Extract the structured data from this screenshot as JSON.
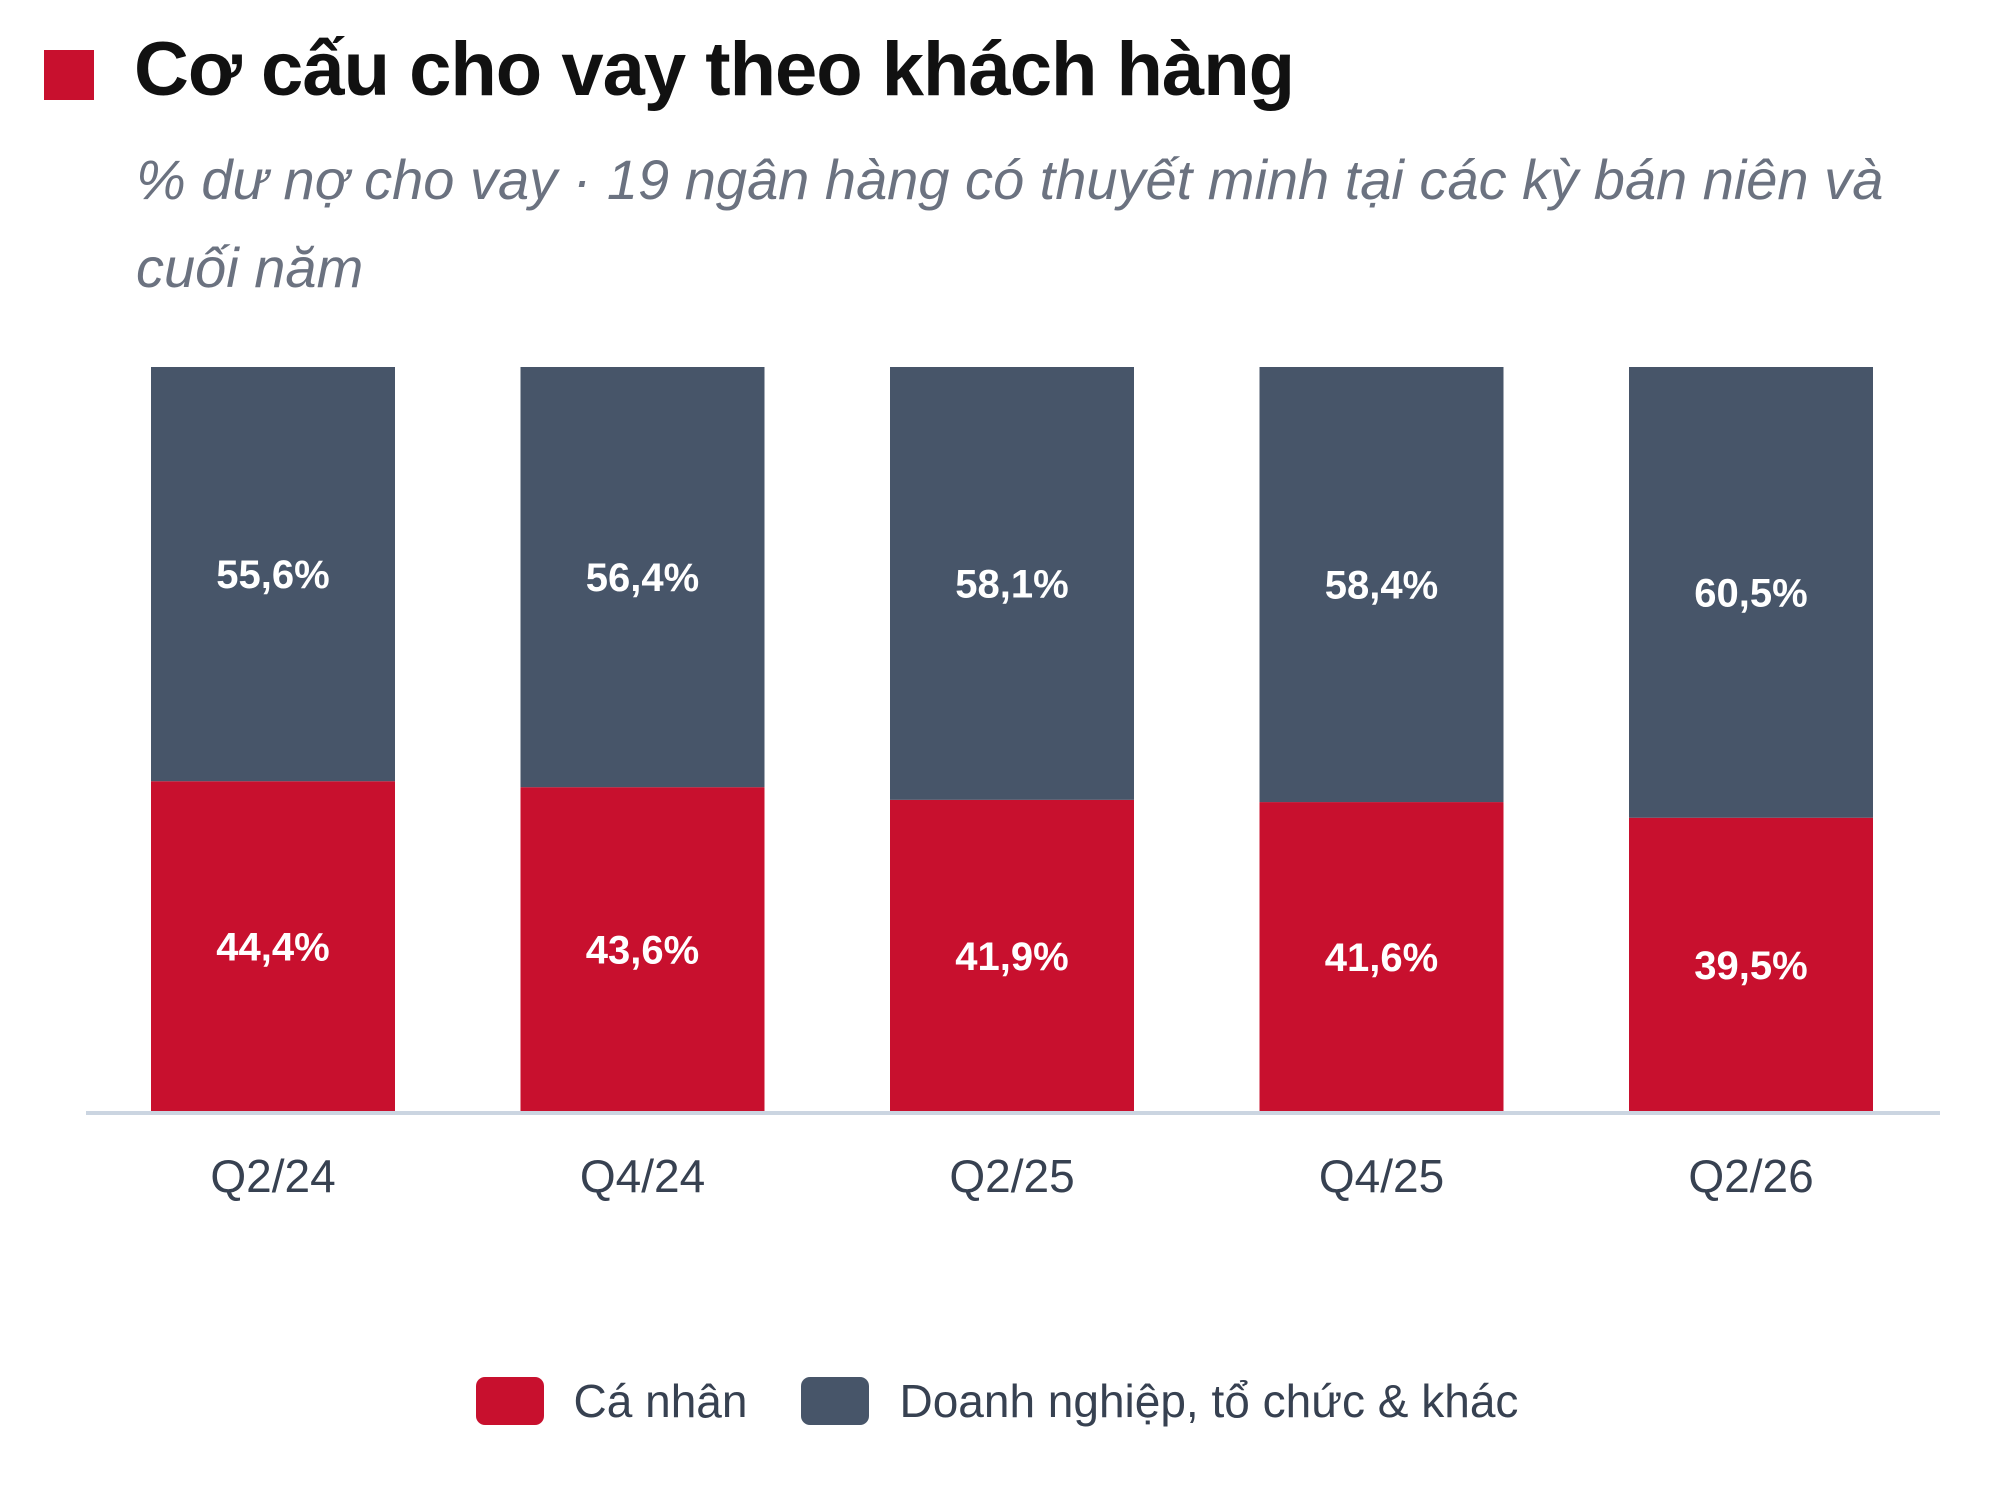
{
  "title": "Cơ cấu cho vay theo khách hàng",
  "subtitle": "% dư nợ cho vay · 19 ngân hàng có thuyết minh tại các kỳ bán niên và cuối năm",
  "colors": {
    "accent": "#c8102e",
    "individual": "#c8102e",
    "business": "#475569",
    "baseline": "#cbd5e1",
    "label": "#ffffff",
    "axis_text": "#374151"
  },
  "chart_data": {
    "type": "bar",
    "stacked": true,
    "categories": [
      "Q2/24",
      "Q4/24",
      "Q2/25",
      "Q4/25",
      "Q2/26"
    ],
    "series": [
      {
        "name": "Cá nhân",
        "values": [
          44.4,
          43.6,
          41.9,
          41.6,
          39.5
        ],
        "labels": [
          "44,4%",
          "43,6%",
          "41,9%",
          "41,6%",
          "39,5%"
        ],
        "color": "#c8102e"
      },
      {
        "name": "Doanh nghiệp, tổ chức & khác",
        "values": [
          55.6,
          56.4,
          58.1,
          58.4,
          60.5
        ],
        "labels": [
          "55,6%",
          "56,4%",
          "58,1%",
          "58,4%",
          "60,5%"
        ],
        "color": "#475569"
      }
    ],
    "ylim": [
      0,
      100
    ],
    "grid": false,
    "legend_position": "bottom"
  }
}
